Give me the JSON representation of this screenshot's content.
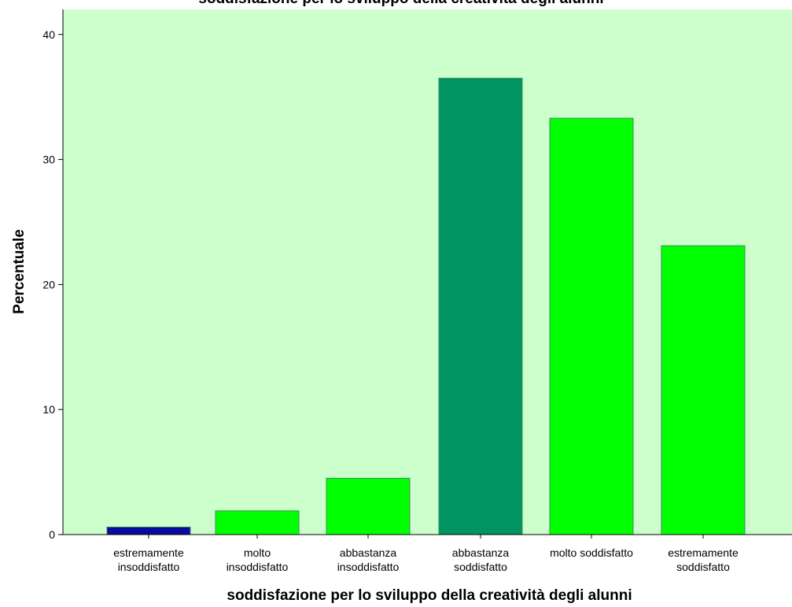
{
  "chart_data": {
    "type": "bar",
    "title": "soddisfazione per lo sviluppo della creatività degli alunni",
    "xlabel": "soddisfazione per lo sviluppo della creatività degli alunni",
    "ylabel": "Percentuale",
    "ylim": [
      0,
      42
    ],
    "yticks": [
      0,
      10,
      20,
      30,
      40
    ],
    "grid": false,
    "categories": [
      [
        "estremamente",
        "insoddisfatto"
      ],
      [
        "molto",
        "insoddisfatto"
      ],
      [
        "abbastanza",
        "insoddisfatto"
      ],
      [
        "abbastanza",
        "soddisfatto"
      ],
      [
        "molto soddisfatto"
      ],
      [
        "estremamente",
        "soddisfatto"
      ]
    ],
    "values": [
      0.6,
      1.9,
      4.5,
      36.5,
      33.3,
      23.1
    ],
    "colors": [
      "#0a0aa0",
      "#00ff00",
      "#00ff00",
      "#009463",
      "#00ff00",
      "#00ff00"
    ],
    "plot_background": "#ccffcc",
    "bar_border": "#3c8c5a"
  }
}
